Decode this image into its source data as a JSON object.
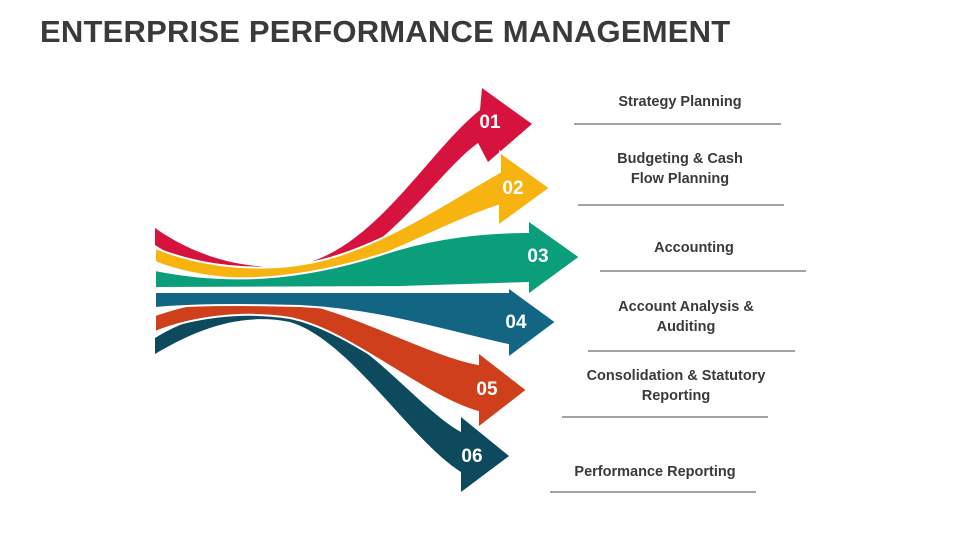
{
  "title": "ENTERPRISE PERFORMANCE MANAGEMENT",
  "items": [
    {
      "number": "01",
      "label": [
        "Strategy Planning"
      ]
    },
    {
      "number": "02",
      "label": [
        "Budgeting & Cash",
        "Flow Planning"
      ]
    },
    {
      "number": "03",
      "label": [
        "Accounting"
      ]
    },
    {
      "number": "04",
      "label": [
        "Account Analysis &",
        "Auditing"
      ]
    },
    {
      "number": "05",
      "label": [
        "Consolidation & Statutory",
        "Reporting"
      ]
    },
    {
      "number": "06",
      "label": [
        "Performance Reporting"
      ]
    }
  ]
}
